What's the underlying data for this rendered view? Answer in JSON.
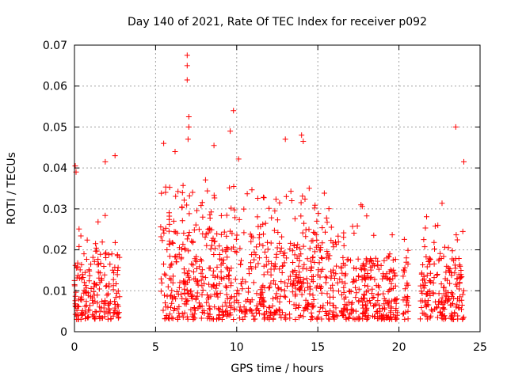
{
  "chart_data": {
    "type": "scatter",
    "title": "Day 140 of 2021, Rate Of TEC Index for receiver p092",
    "xlabel": "GPS time / hours",
    "ylabel": "ROTI / TECUs",
    "xlim": [
      0,
      25
    ],
    "ylim": [
      0,
      0.07
    ],
    "grid": true,
    "marker": "+",
    "color": "#ff0000",
    "x_ticks": [
      0,
      5,
      10,
      15,
      20,
      25
    ],
    "y_ticks": [
      0,
      0.01,
      0.02,
      0.03,
      0.04,
      0.05,
      0.06,
      0.07
    ],
    "x_tick_labels": [
      "0",
      "5",
      "10",
      "15",
      "20",
      "25"
    ],
    "y_tick_labels": [
      "0",
      "0.01",
      "0.02",
      "0.03",
      "0.04",
      "0.05",
      "0.06",
      "0.07"
    ],
    "data_segments": [
      {
        "x_start": 0.0,
        "x_end": 2.8,
        "typical_max": 0.02
      },
      {
        "x_start": 5.3,
        "x_end": 15.8,
        "typical_max": 0.032
      },
      {
        "x_start": 15.8,
        "x_end": 19.9,
        "typical_max": 0.022
      },
      {
        "x_start": 20.2,
        "x_end": 20.6,
        "typical_max": 0.02
      },
      {
        "x_start": 21.3,
        "x_end": 24.0,
        "typical_max": 0.022
      }
    ],
    "notable_points": [
      {
        "x": 0.05,
        "y": 0.0405
      },
      {
        "x": 0.1,
        "y": 0.039
      },
      {
        "x": 1.9,
        "y": 0.0415
      },
      {
        "x": 2.5,
        "y": 0.043
      },
      {
        "x": 5.5,
        "y": 0.046
      },
      {
        "x": 6.2,
        "y": 0.044
      },
      {
        "x": 6.95,
        "y": 0.0675
      },
      {
        "x": 6.95,
        "y": 0.065
      },
      {
        "x": 6.95,
        "y": 0.0615
      },
      {
        "x": 7.05,
        "y": 0.0525
      },
      {
        "x": 7.05,
        "y": 0.05
      },
      {
        "x": 7.0,
        "y": 0.047
      },
      {
        "x": 8.6,
        "y": 0.0455
      },
      {
        "x": 9.6,
        "y": 0.049
      },
      {
        "x": 9.8,
        "y": 0.054
      },
      {
        "x": 13.0,
        "y": 0.047
      },
      {
        "x": 14.0,
        "y": 0.048
      },
      {
        "x": 14.1,
        "y": 0.0465
      },
      {
        "x": 23.5,
        "y": 0.05
      },
      {
        "x": 24.0,
        "y": 0.0415
      }
    ]
  }
}
